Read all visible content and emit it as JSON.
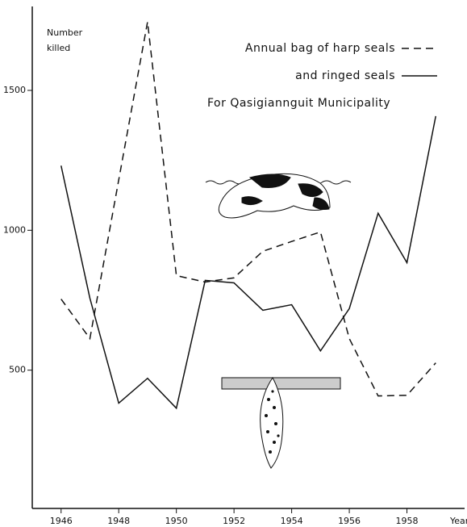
{
  "chart_data": {
    "type": "line",
    "subtitle": "For Qasigiannguit Municipality",
    "y_label": [
      "Number",
      "killed"
    ],
    "x_label": "Year",
    "x": [
      1946,
      1947,
      1948,
      1949,
      1950,
      1951,
      1952,
      1953,
      1954,
      1955,
      1956,
      1957,
      1958,
      1959
    ],
    "series": [
      {
        "name": "Annual bag of harp seals",
        "color": "#111111",
        "style": "dashed",
        "values": [
          754,
          613,
          1180,
          1745,
          838,
          815,
          830,
          925,
          960,
          994,
          613,
          408,
          410,
          526
        ]
      },
      {
        "name": "and ringed seals",
        "color": "#111111",
        "style": "solid",
        "values": [
          1231,
          757,
          382,
          471,
          364,
          821,
          812,
          714,
          734,
          569,
          720,
          1061,
          884,
          1408
        ]
      }
    ],
    "xlim": [
      1945,
      1960
    ],
    "xticks": [
      1946,
      1948,
      1950,
      1952,
      1954,
      1956,
      1958
    ],
    "ylim": [
      0,
      1800
    ],
    "yticks": [
      500,
      1000,
      1500
    ]
  }
}
